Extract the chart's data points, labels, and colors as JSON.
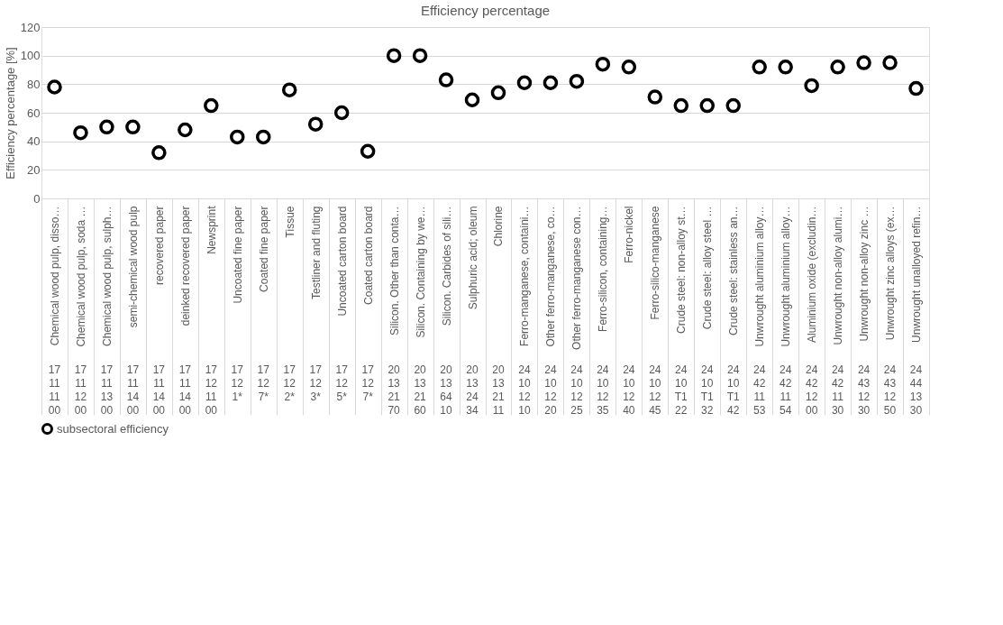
{
  "chart_data": {
    "type": "scatter",
    "title": "Efficiency percentage",
    "ylabel": "Efficiency percentage [%]",
    "categories": [
      "Chemical wood pulp, disso…",
      "Chemical wood pulp, soda …",
      "Chemical wood pulp, sulph…",
      "semi-chemical wood pulp",
      "recovered paper",
      "deinked recovered paper",
      "Newsprint",
      "Uncoated fine paper",
      "Coated fine paper",
      "Tissue",
      "Testliner and fluting",
      "Uncoated carton board",
      "Coated carton board",
      "Silicon. Other than conta…",
      "Silicon. Containing by we…",
      "Silicon. Carbides of sili…",
      "Sulphuric acid; oleum",
      "Chlorine",
      "Ferro-manganese, containi…",
      "Other ferro-manganese, co…",
      "Other ferro-manganese con…",
      "Ferro-silicon, containing…",
      "Ferro-nickel",
      "Ferro-silico-manganese",
      "Crude steel: non-alloy st…",
      "Crude steel: alloy steel …",
      "Crude steel: stainless an…",
      "Unwrought aluminium alloy…",
      "Unwrought aluminium alloy…",
      "Aluminium oxide (excludin…",
      "Unwrought non-alloy alumi…",
      "Unwrought non-alloy zinc …",
      "Unwrought zinc alloys (ex…",
      "Unwrought unalloyed refin…"
    ],
    "series": [
      {
        "name": "subsectoral efficiency",
        "color": "#000000",
        "values": [
          78,
          46,
          50,
          50,
          32,
          48,
          65,
          43,
          43,
          76,
          52,
          60,
          33,
          100,
          100,
          83,
          69,
          74,
          81,
          81,
          82,
          94,
          92,
          71,
          65,
          65,
          65,
          92,
          92,
          79,
          92,
          95,
          95,
          77
        ]
      }
    ],
    "annotations": [
      "17\n11\n11\n00",
      "17\n11\n12\n00",
      "17\n11\n13\n00",
      "17\n11\n14\n00",
      "17\n11\n14\n00",
      "17\n11\n14\n00",
      "17\n12\n11\n00",
      "17\n12\n1*",
      "17\n12\n7*",
      "17\n12\n2*",
      "17\n12\n3*",
      "17\n12\n5*",
      "17\n12\n7*",
      "20\n13\n21\n70",
      "20\n13\n21\n60",
      "20\n13\n64\n10",
      "20\n13\n24\n34",
      "20\n13\n21\n11",
      "24\n10\n12\n10",
      "24\n10\n12\n20",
      "24\n10\n12\n25",
      "24\n10\n12\n35",
      "24\n10\n12\n40",
      "24\n10\n12\n45",
      "24\n10\nT1\n22",
      "24\n10\nT1\n32",
      "24\n10\nT1\n42",
      "24\n42\n11\n53",
      "24\n42\n11\n54",
      "24\n42\n12\n00",
      "24\n42\n11\n30",
      "24\n43\n12\n30",
      "24\n43\n12\n50",
      "24\n44\n13\n30"
    ],
    "ylim": [
      0,
      120
    ],
    "yticks": [
      0,
      20,
      40,
      60,
      80,
      100,
      120
    ],
    "grid": "y",
    "legend": "bottom",
    "marker": "circle"
  }
}
